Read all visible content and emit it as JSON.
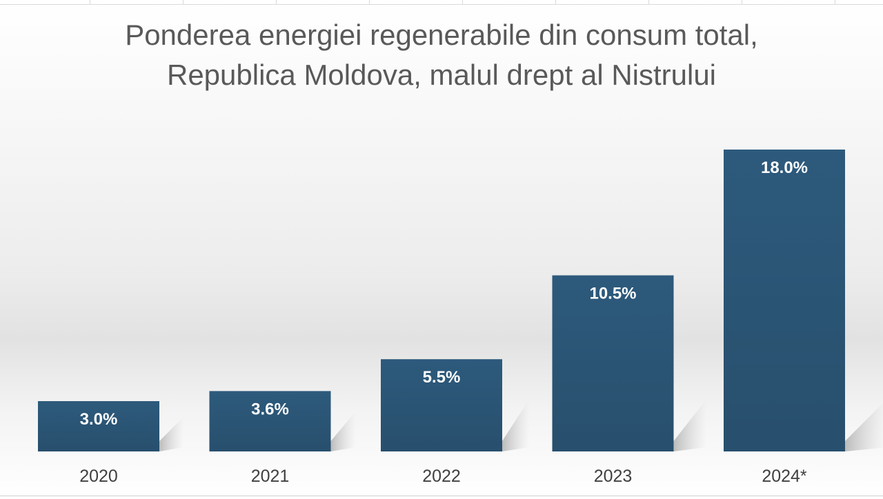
{
  "chart_data": {
    "type": "bar",
    "title": [
      "Ponderea energiei regenerabile din consum total,",
      "Republica Moldova, malul drept al Nistrului"
    ],
    "categories": [
      "2020",
      "2021",
      "2022",
      "2023",
      "2024*"
    ],
    "values": [
      3.0,
      3.6,
      5.5,
      10.5,
      18.0
    ],
    "value_labels": [
      "3.0%",
      "3.6%",
      "5.5%",
      "10.5%",
      "18.0%"
    ],
    "xlabel": "",
    "ylabel": "",
    "ylim": [
      0,
      18
    ],
    "grid": false,
    "legend": "none",
    "bar_color": "#2b5576",
    "label_color": "#ffffff"
  }
}
